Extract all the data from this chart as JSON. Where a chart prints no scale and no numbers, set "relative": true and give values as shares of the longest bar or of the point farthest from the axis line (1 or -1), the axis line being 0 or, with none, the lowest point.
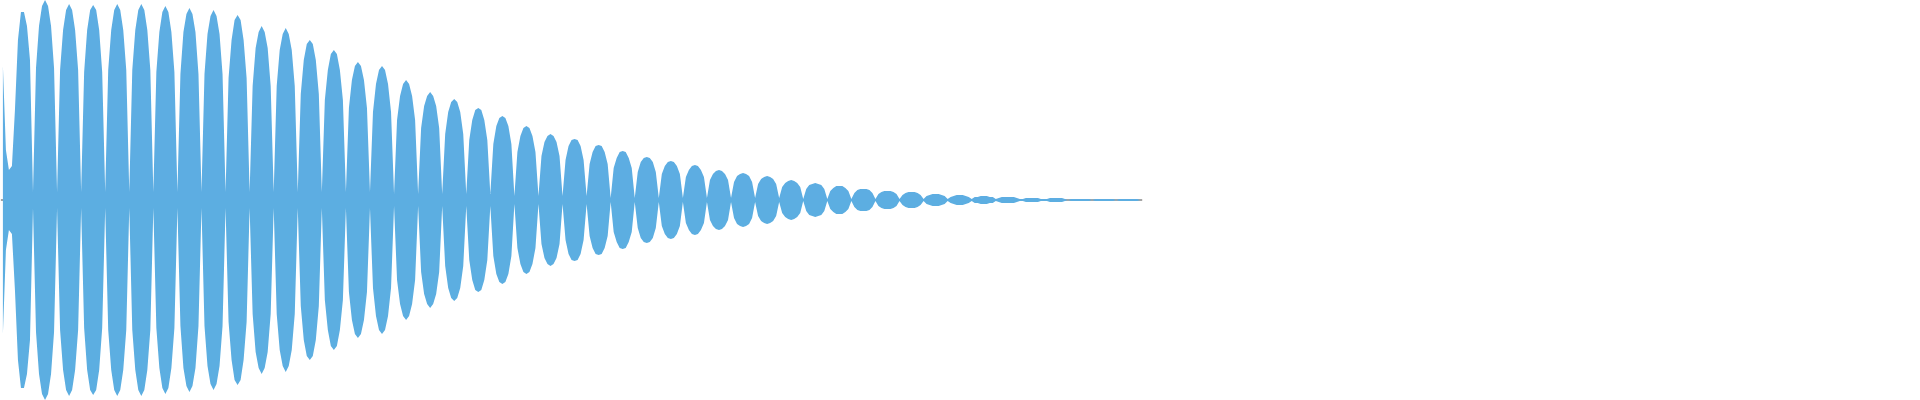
{
  "chart_data": {
    "type": "area",
    "relative": true,
    "categories": [
      null,
      null,
      null,
      null,
      null,
      null,
      null,
      null,
      null,
      null,
      null,
      null,
      null,
      null,
      null,
      null,
      null,
      null,
      null,
      null,
      null,
      null,
      null,
      null,
      null,
      null,
      null,
      null,
      null,
      null,
      null,
      null,
      null,
      null,
      null,
      null,
      null,
      null,
      null,
      null,
      null,
      null,
      null,
      null,
      null,
      null,
      null,
      null,
      null,
      null,
      null,
      null,
      null,
      null,
      null,
      null,
      null,
      null,
      null,
      null,
      null,
      null,
      null,
      null,
      null,
      null,
      null,
      null,
      null,
      null,
      null,
      null,
      null,
      null,
      null,
      null,
      null,
      null,
      null,
      null,
      null,
      null,
      null,
      null,
      null,
      null,
      null,
      null,
      null,
      null,
      null,
      null,
      null,
      null,
      null,
      null,
      null,
      null,
      null,
      null,
      null,
      null,
      null,
      null,
      null,
      null,
      null,
      null,
      null,
      null,
      null,
      null,
      null,
      null,
      null,
      null,
      null,
      null,
      null,
      null,
      null,
      null,
      null,
      null,
      null,
      null,
      null,
      null,
      null,
      null,
      null,
      null,
      null,
      null,
      null,
      null,
      null,
      null,
      null,
      null,
      null,
      null,
      null,
      null,
      null,
      null,
      null,
      null,
      null,
      null,
      null,
      null,
      null,
      null,
      null,
      null,
      null,
      null,
      null,
      null,
      null,
      null,
      null,
      null,
      null,
      null,
      null,
      null,
      null,
      null,
      null,
      null,
      null,
      null,
      null,
      null,
      null,
      null,
      null,
      null,
      null,
      null,
      null,
      null,
      null,
      null,
      null,
      null,
      null,
      null,
      null,
      null,
      null,
      null,
      null,
      null,
      null,
      null,
      null,
      null,
      null,
      null,
      null,
      null,
      null,
      null,
      null,
      null,
      null,
      null,
      null,
      null,
      null,
      null,
      null,
      null,
      null,
      null,
      null,
      null,
      null,
      null,
      null,
      null,
      null,
      null,
      null,
      null,
      null,
      null,
      null,
      null,
      null,
      null,
      null,
      null,
      null,
      null,
      null,
      null,
      null,
      null,
      null,
      null,
      null,
      null,
      null,
      null,
      null,
      null,
      null,
      null,
      null,
      null,
      null,
      null,
      null,
      null,
      null,
      null,
      null,
      null,
      null,
      null,
      null,
      null,
      null,
      null,
      null,
      null,
      null,
      null,
      null,
      null,
      null,
      null,
      null,
      null,
      null,
      null,
      null,
      null,
      null,
      null,
      null,
      null,
      null,
      null,
      null,
      null,
      null,
      null,
      null,
      null,
      null,
      null,
      null,
      null,
      null,
      null,
      null,
      null,
      null,
      null,
      null,
      null,
      null,
      null,
      null,
      null,
      null,
      null,
      null,
      null,
      null,
      null,
      null,
      null,
      null,
      null,
      null,
      null,
      null,
      null,
      null,
      null,
      null,
      null,
      null,
      null,
      null,
      null,
      null,
      null,
      null,
      null,
      null,
      null,
      null,
      null,
      null,
      null,
      null,
      null,
      null,
      null,
      null,
      null,
      null,
      null,
      null,
      null,
      null,
      null,
      null,
      null,
      null,
      null,
      null,
      null,
      null,
      null,
      null,
      null,
      null,
      null,
      null,
      null,
      null,
      null,
      null,
      null,
      null,
      null,
      null,
      null,
      null,
      null,
      null
    ],
    "series": [
      {
        "color": "#5dade2",
        "values": [
          0.67,
          0.25,
          0.15,
          0.17,
          0.45,
          0.8,
          0.94,
          0.94,
          0.87,
          0.7,
          0.04,
          0.66,
          0.87,
          0.97,
          1.0,
          0.97,
          0.87,
          0.66,
          0.04,
          0.65,
          0.85,
          0.95,
          0.98,
          0.95,
          0.85,
          0.65,
          0.04,
          0.64,
          0.85,
          0.95,
          0.975,
          0.95,
          0.85,
          0.64,
          0.04,
          0.65,
          0.85,
          0.95,
          0.98,
          0.95,
          0.85,
          0.65,
          0.04,
          0.65,
          0.85,
          0.95,
          0.98,
          0.95,
          0.85,
          0.65,
          0.04,
          0.64,
          0.84,
          0.94,
          0.97,
          0.94,
          0.84,
          0.64,
          0.04,
          0.63,
          0.84,
          0.93,
          0.96,
          0.93,
          0.84,
          0.63,
          0.04,
          0.63,
          0.83,
          0.92,
          0.95,
          0.92,
          0.83,
          0.63,
          0.04,
          0.61,
          0.8,
          0.9,
          0.925,
          0.9,
          0.8,
          0.61,
          0.04,
          0.57,
          0.76,
          0.84,
          0.87,
          0.84,
          0.76,
          0.57,
          0.04,
          0.57,
          0.75,
          0.83,
          0.86,
          0.83,
          0.75,
          0.57,
          0.04,
          0.53,
          0.7,
          0.78,
          0.8,
          0.78,
          0.7,
          0.53,
          0.04,
          0.5,
          0.65,
          0.73,
          0.75,
          0.73,
          0.65,
          0.5,
          0.04,
          0.46,
          0.6,
          0.67,
          0.69,
          0.67,
          0.6,
          0.46,
          0.04,
          0.44,
          0.58,
          0.65,
          0.67,
          0.65,
          0.58,
          0.44,
          0.03,
          0.4,
          0.52,
          0.58,
          0.6,
          0.58,
          0.52,
          0.4,
          0.03,
          0.36,
          0.47,
          0.52,
          0.54,
          0.52,
          0.47,
          0.36,
          0.03,
          0.33,
          0.44,
          0.49,
          0.505,
          0.49,
          0.44,
          0.33,
          0.03,
          0.3,
          0.4,
          0.45,
          0.46,
          0.45,
          0.4,
          0.3,
          0.03,
          0.28,
          0.37,
          0.41,
          0.42,
          0.41,
          0.37,
          0.28,
          0.02,
          0.24,
          0.32,
          0.36,
          0.37,
          0.36,
          0.32,
          0.24,
          0.02,
          0.22,
          0.29,
          0.32,
          0.33,
          0.32,
          0.29,
          0.22,
          0.02,
          0.2,
          0.27,
          0.3,
          0.305,
          0.3,
          0.27,
          0.2,
          0.02,
          0.18,
          0.24,
          0.27,
          0.275,
          0.27,
          0.24,
          0.18,
          0.01,
          0.16,
          0.21,
          0.24,
          0.245,
          0.24,
          0.21,
          0.16,
          0.01,
          0.14,
          0.19,
          0.21,
          0.215,
          0.21,
          0.19,
          0.14,
          0.01,
          0.13,
          0.17,
          0.19,
          0.195,
          0.19,
          0.17,
          0.13,
          0.01,
          0.115,
          0.15,
          0.17,
          0.175,
          0.17,
          0.15,
          0.115,
          0.01,
          0.1,
          0.13,
          0.145,
          0.15,
          0.145,
          0.13,
          0.1,
          0.01,
          0.09,
          0.12,
          0.13,
          0.135,
          0.13,
          0.12,
          0.09,
          0.01,
          0.08,
          0.105,
          0.115,
          0.12,
          0.115,
          0.105,
          0.08,
          0.01,
          0.065,
          0.085,
          0.095,
          0.1,
          0.095,
          0.085,
          0.065,
          0.005,
          0.055,
          0.075,
          0.08,
          0.085,
          0.08,
          0.075,
          0.055,
          0.005,
          0.045,
          0.06,
          0.07,
          0.07,
          0.07,
          0.06,
          0.045,
          0.005,
          0.035,
          0.05,
          0.055,
          0.055,
          0.055,
          0.05,
          0.035,
          0.005,
          0.03,
          0.04,
          0.045,
          0.045,
          0.045,
          0.04,
          0.03,
          0.005,
          0.025,
          0.035,
          0.04,
          0.04,
          0.04,
          0.035,
          0.025,
          0.005,
          0.02,
          0.025,
          0.03,
          0.03,
          0.03,
          0.025,
          0.02,
          0.005,
          0.015,
          0.02,
          0.025,
          0.025,
          0.025,
          0.02,
          0.015,
          0.005,
          0.015,
          0.015,
          0.02,
          0.02,
          0.02,
          0.015,
          0.015,
          0.005,
          0.01,
          0.015,
          0.015,
          0.015,
          0.015,
          0.015,
          0.01,
          0.005,
          0.005,
          0.01,
          0.01,
          0.01,
          0.01,
          0.01,
          0.005,
          0.005,
          0.005,
          0.01,
          0.01,
          0.01,
          0.01,
          0.01,
          0.005,
          0,
          0.005,
          0.005,
          0.005,
          0.005,
          0.005,
          0.005,
          0.005,
          0,
          0.005,
          0.005,
          0.005,
          0.005,
          0.005,
          0.005,
          0.005,
          0,
          0.005,
          0.005,
          0.005,
          0.005,
          0.005,
          0.005,
          0.005,
          0
        ]
      },
      {
        "color": "#5caee1",
        "values": [
          -0.67,
          -0.25,
          -0.15,
          -0.17,
          -0.45,
          -0.8,
          -0.94,
          -0.94,
          -0.87,
          -0.7,
          -0.04,
          -0.66,
          -0.87,
          -0.97,
          -1.0,
          -0.97,
          -0.87,
          -0.66,
          -0.04,
          -0.65,
          -0.85,
          -0.95,
          -0.98,
          -0.95,
          -0.85,
          -0.65,
          -0.04,
          -0.64,
          -0.85,
          -0.95,
          -0.975,
          -0.95,
          -0.85,
          -0.64,
          -0.04,
          -0.65,
          -0.85,
          -0.95,
          -0.98,
          -0.95,
          -0.85,
          -0.65,
          -0.04,
          -0.65,
          -0.85,
          -0.95,
          -0.98,
          -0.95,
          -0.85,
          -0.65,
          -0.04,
          -0.64,
          -0.84,
          -0.94,
          -0.97,
          -0.94,
          -0.84,
          -0.64,
          -0.04,
          -0.63,
          -0.84,
          -0.93,
          -0.96,
          -0.93,
          -0.84,
          -0.63,
          -0.04,
          -0.63,
          -0.83,
          -0.92,
          -0.95,
          -0.92,
          -0.83,
          -0.63,
          -0.04,
          -0.61,
          -0.8,
          -0.9,
          -0.925,
          -0.9,
          -0.8,
          -0.61,
          -0.04,
          -0.57,
          -0.76,
          -0.84,
          -0.87,
          -0.84,
          -0.76,
          -0.57,
          -0.04,
          -0.57,
          -0.75,
          -0.83,
          -0.86,
          -0.83,
          -0.75,
          -0.57,
          -0.04,
          -0.53,
          -0.7,
          -0.78,
          -0.8,
          -0.78,
          -0.7,
          -0.53,
          -0.04,
          -0.5,
          -0.65,
          -0.73,
          -0.75,
          -0.73,
          -0.65,
          -0.5,
          -0.04,
          -0.46,
          -0.6,
          -0.67,
          -0.69,
          -0.67,
          -0.6,
          -0.46,
          -0.04,
          -0.44,
          -0.58,
          -0.65,
          -0.67,
          -0.65,
          -0.58,
          -0.44,
          -0.03,
          -0.4,
          -0.52,
          -0.58,
          -0.6,
          -0.58,
          -0.52,
          -0.4,
          -0.03,
          -0.36,
          -0.47,
          -0.52,
          -0.54,
          -0.52,
          -0.47,
          -0.36,
          -0.03,
          -0.33,
          -0.44,
          -0.49,
          -0.505,
          -0.49,
          -0.44,
          -0.33,
          -0.03,
          -0.3,
          -0.4,
          -0.45,
          -0.46,
          -0.45,
          -0.4,
          -0.3,
          -0.03,
          -0.28,
          -0.37,
          -0.41,
          -0.42,
          -0.41,
          -0.37,
          -0.28,
          -0.02,
          -0.24,
          -0.32,
          -0.36,
          -0.37,
          -0.36,
          -0.32,
          -0.24,
          -0.02,
          -0.22,
          -0.29,
          -0.32,
          -0.33,
          -0.32,
          -0.29,
          -0.22,
          -0.02,
          -0.2,
          -0.27,
          -0.3,
          -0.305,
          -0.3,
          -0.27,
          -0.2,
          -0.02,
          -0.18,
          -0.24,
          -0.27,
          -0.275,
          -0.27,
          -0.24,
          -0.18,
          -0.01,
          -0.16,
          -0.21,
          -0.24,
          -0.245,
          -0.24,
          -0.21,
          -0.16,
          -0.01,
          -0.14,
          -0.19,
          -0.21,
          -0.215,
          -0.21,
          -0.19,
          -0.14,
          -0.01,
          -0.13,
          -0.17,
          -0.19,
          -0.195,
          -0.19,
          -0.17,
          -0.13,
          -0.01,
          -0.115,
          -0.15,
          -0.17,
          -0.175,
          -0.17,
          -0.15,
          -0.115,
          -0.01,
          -0.1,
          -0.13,
          -0.145,
          -0.15,
          -0.145,
          -0.13,
          -0.1,
          -0.01,
          -0.09,
          -0.12,
          -0.13,
          -0.135,
          -0.13,
          -0.12,
          -0.09,
          -0.01,
          -0.08,
          -0.105,
          -0.115,
          -0.12,
          -0.115,
          -0.105,
          -0.08,
          -0.01,
          -0.065,
          -0.085,
          -0.095,
          -0.1,
          -0.095,
          -0.085,
          -0.065,
          -0.005,
          -0.055,
          -0.075,
          -0.08,
          -0.085,
          -0.08,
          -0.075,
          -0.055,
          -0.005,
          -0.045,
          -0.06,
          -0.07,
          -0.07,
          -0.07,
          -0.06,
          -0.045,
          -0.005,
          -0.035,
          -0.05,
          -0.055,
          -0.055,
          -0.055,
          -0.05,
          -0.035,
          -0.005,
          -0.03,
          -0.04,
          -0.045,
          -0.045,
          -0.045,
          -0.04,
          -0.03,
          -0.005,
          -0.025,
          -0.035,
          -0.04,
          -0.04,
          -0.04,
          -0.035,
          -0.025,
          -0.005,
          -0.02,
          -0.025,
          -0.03,
          -0.03,
          -0.03,
          -0.025,
          -0.02,
          -0.005,
          -0.015,
          -0.02,
          -0.025,
          -0.025,
          -0.025,
          -0.02,
          -0.015,
          -0.005,
          -0.015,
          -0.015,
          -0.02,
          -0.02,
          -0.02,
          -0.015,
          -0.015,
          -0.005,
          -0.01,
          -0.015,
          -0.015,
          -0.015,
          -0.015,
          -0.015,
          -0.01,
          -0.005,
          -0.005,
          -0.01,
          -0.01,
          -0.01,
          -0.01,
          -0.01,
          -0.005,
          -0.005,
          -0.005,
          -0.01,
          -0.01,
          -0.01,
          -0.01,
          -0.01,
          -0.005,
          0,
          -0.005,
          -0.005,
          -0.005,
          -0.005,
          -0.005,
          -0.005,
          -0.005,
          0,
          -0.005,
          -0.005,
          -0.005,
          -0.005,
          -0.005,
          -0.005,
          -0.005,
          0,
          -0.005,
          -0.005,
          -0.005,
          -0.005,
          -0.005,
          -0.005,
          -0.005,
          0
        ]
      }
    ]
  }
}
